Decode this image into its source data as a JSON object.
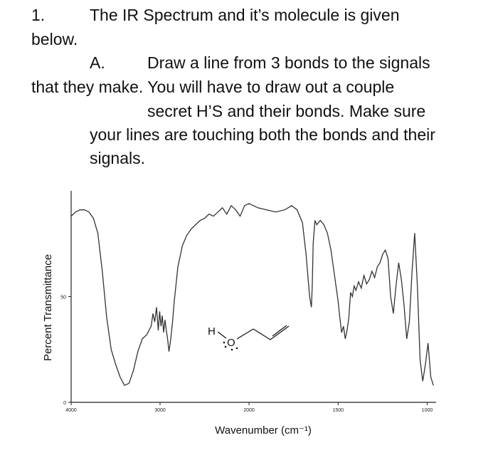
{
  "question": {
    "number": "1.",
    "intro_a": "The IR Spectrum and it’s molecule is given",
    "intro_b": "below.",
    "part_letter": "A.",
    "part_line1": "Draw a line from 3 bonds to the signals",
    "part_line2": "that they make.  You will have to draw out a couple",
    "part_line3": "secret H’S and their bonds.  Make sure",
    "part_line4": "your lines are touching both the bonds and their",
    "part_line5": "signals."
  },
  "chart_data": {
    "type": "line",
    "title": "",
    "xlabel": "Wavenumber (cm⁻¹)",
    "ylabel": "Percent Transmittance",
    "xlim": [
      4000,
      950
    ],
    "ylim": [
      0,
      100
    ],
    "x_ticks": [
      "4000",
      "3000",
      "2000",
      "1500",
      "1000"
    ],
    "y_ticks": [
      "0",
      "50"
    ],
    "series": [
      {
        "x": [
          4000,
          3950,
          3900,
          3850,
          3800,
          3750,
          3700,
          3650,
          3600,
          3550,
          3500,
          3450,
          3400,
          3350,
          3300,
          3250,
          3200,
          3150,
          3100,
          3080,
          3060,
          3040,
          3020,
          3005,
          2990,
          2975,
          2960,
          2945,
          2930,
          2915,
          2900,
          2880,
          2860,
          2840,
          2800,
          2750,
          2700,
          2650,
          2600,
          2550,
          2500,
          2450,
          2400,
          2350,
          2300,
          2250,
          2200,
          2150,
          2100,
          2050,
          2000,
          1950,
          1900,
          1850,
          1800,
          1760,
          1730,
          1700,
          1680,
          1660,
          1650,
          1645,
          1640,
          1630,
          1620,
          1600,
          1580,
          1560,
          1540,
          1520,
          1500,
          1490,
          1480,
          1470,
          1460,
          1450,
          1440,
          1430,
          1420,
          1410,
          1400,
          1385,
          1370,
          1355,
          1340,
          1325,
          1310,
          1295,
          1280,
          1265,
          1250,
          1235,
          1220,
          1205,
          1190,
          1175,
          1160,
          1145,
          1130,
          1115,
          1100,
          1085,
          1070,
          1055,
          1040,
          1025,
          1010,
          995,
          980,
          965
        ],
        "y": [
          88,
          90,
          91,
          91,
          90,
          87,
          80,
          62,
          40,
          25,
          18,
          12,
          8,
          9,
          15,
          24,
          30,
          32,
          36,
          42,
          38,
          45,
          34,
          43,
          36,
          41,
          33,
          39,
          34,
          30,
          24,
          30,
          38,
          48,
          64,
          74,
          79,
          82,
          84,
          86,
          87,
          89,
          88,
          90,
          92,
          89,
          93,
          91,
          88,
          93,
          94,
          92,
          91,
          90,
          91,
          93,
          91,
          85,
          70,
          50,
          45,
          55,
          75,
          86,
          84,
          86,
          84,
          80,
          72,
          60,
          48,
          40,
          33,
          36,
          30,
          34,
          40,
          52,
          50,
          55,
          53,
          57,
          54,
          60,
          56,
          58,
          62,
          59,
          64,
          66,
          70,
          72,
          68,
          50,
          42,
          55,
          66,
          58,
          46,
          30,
          38,
          62,
          80,
          55,
          20,
          10,
          18,
          28,
          12,
          8
        ]
      }
    ],
    "grid": false
  }
}
